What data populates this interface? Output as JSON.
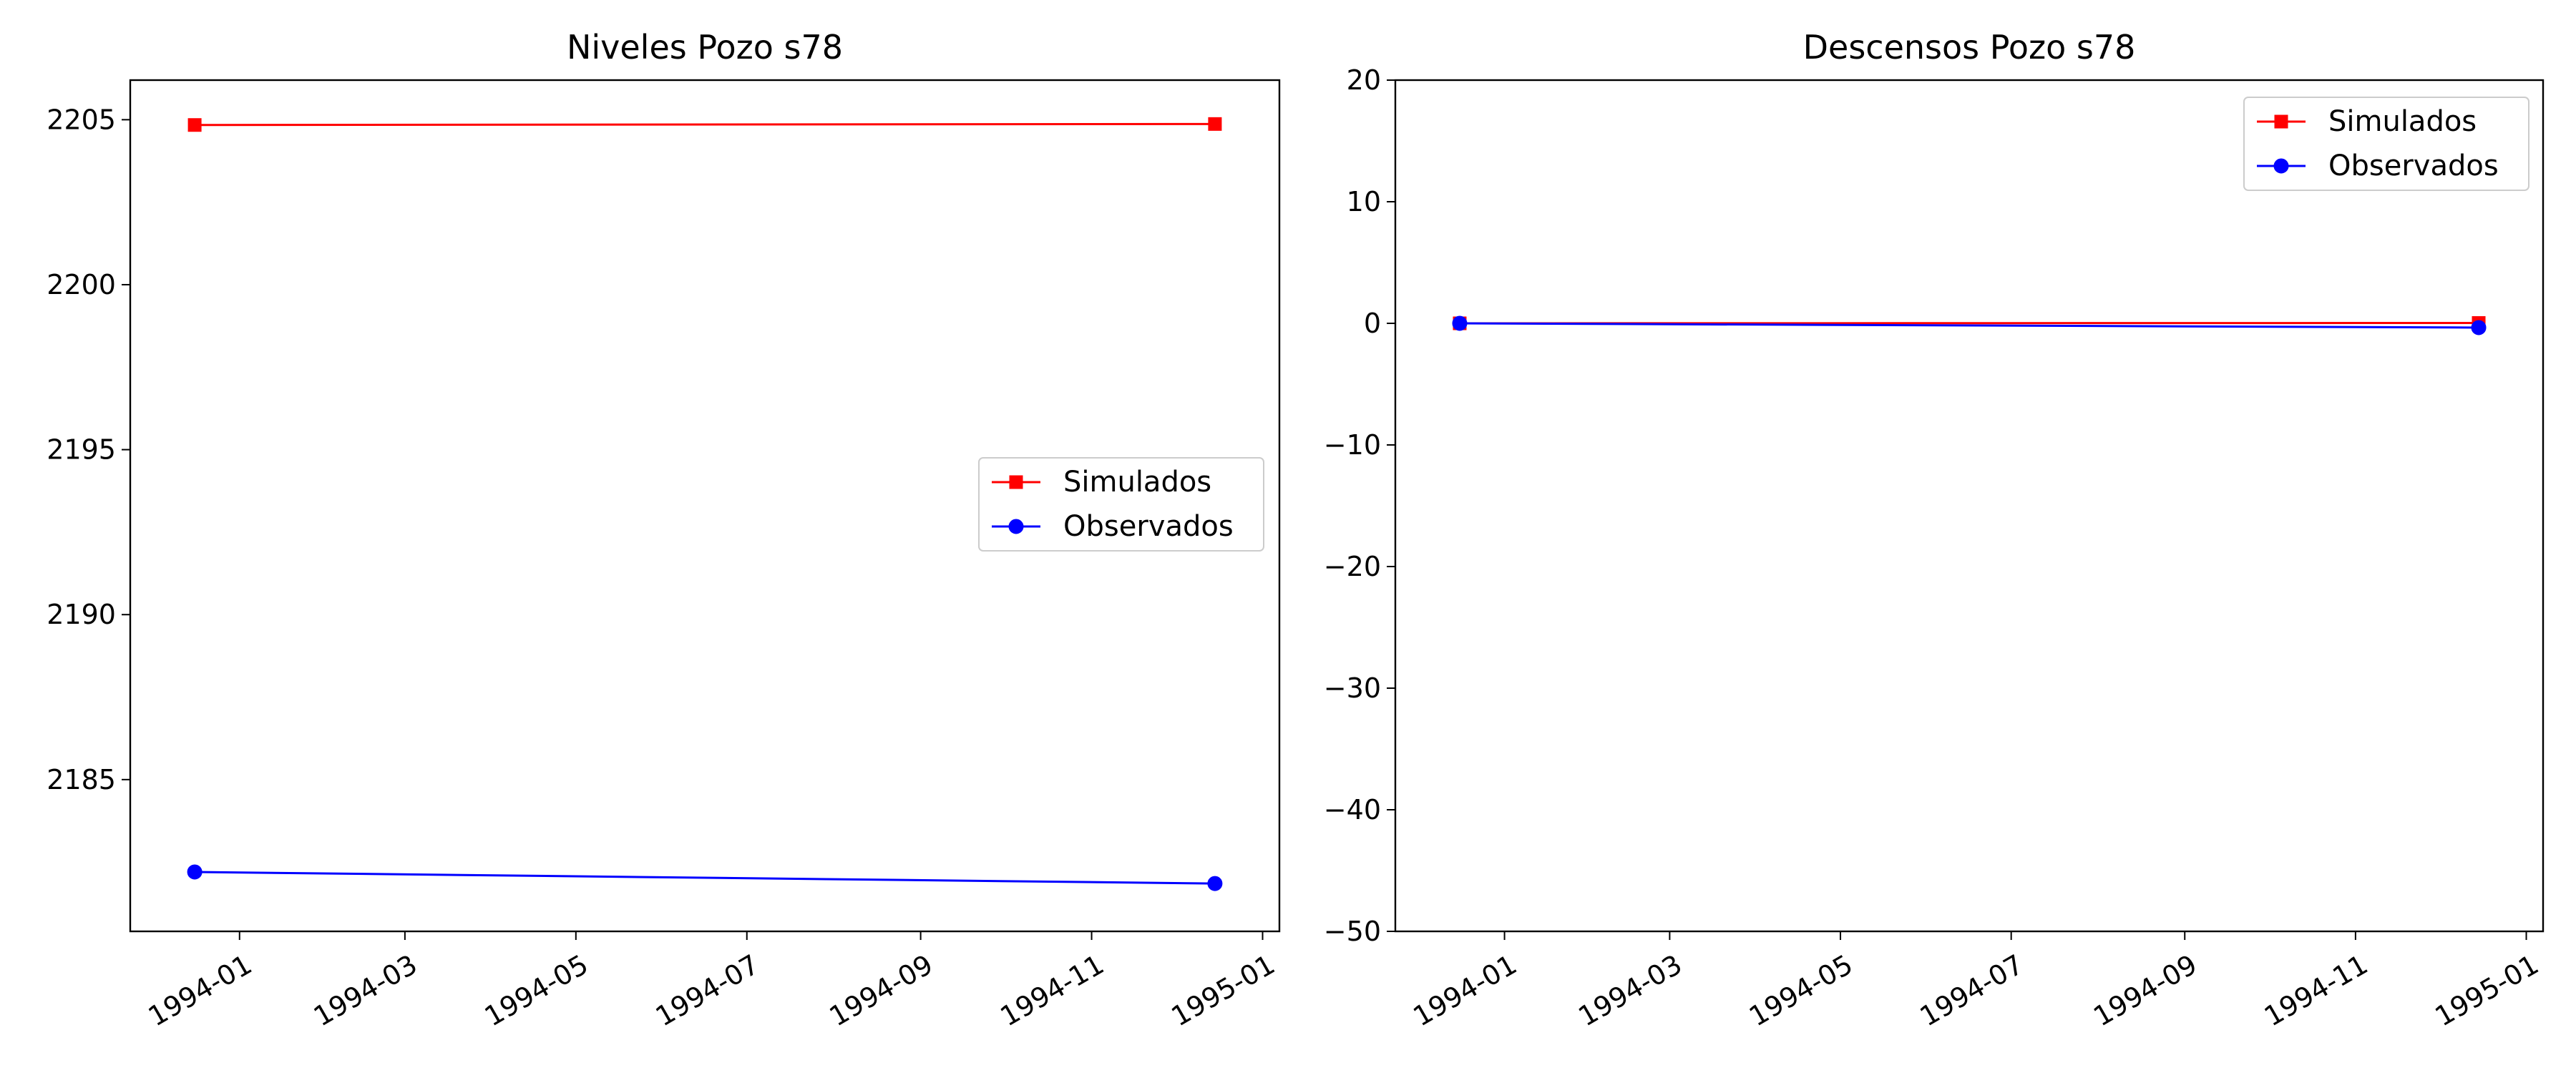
{
  "chart_data": [
    {
      "type": "line",
      "title": "Niveles Pozo s78",
      "xlabel": "",
      "ylabel": "",
      "x_ticks": [
        "1994-01",
        "1994-03",
        "1994-05",
        "1994-07",
        "1994-09",
        "1994-11",
        "1995-01"
      ],
      "y_ticks": [
        "2185",
        "2190",
        "2195",
        "2200",
        "2205"
      ],
      "xlim": [
        "1993-11-23",
        "1995-01-07"
      ],
      "ylim": [
        2180.4,
        2206.2
      ],
      "series": [
        {
          "name": "Simulados",
          "color": "#ff0000",
          "marker": "square",
          "x": [
            "1993-12-16",
            "1994-12-15"
          ],
          "y": [
            2204.84,
            2204.87
          ]
        },
        {
          "name": "Observados",
          "color": "#0000ff",
          "marker": "circle",
          "x": [
            "1993-12-16",
            "1994-12-15"
          ],
          "y": [
            2182.2,
            2181.85
          ]
        }
      ],
      "legend": {
        "position": "center-right",
        "entries": [
          "Simulados",
          "Observados"
        ]
      },
      "grid": false
    },
    {
      "type": "line",
      "title": "Descensos Pozo s78",
      "xlabel": "",
      "ylabel": "",
      "x_ticks": [
        "1994-01",
        "1994-03",
        "1994-05",
        "1994-07",
        "1994-09",
        "1994-11",
        "1995-01"
      ],
      "y_ticks": [
        "20",
        "10",
        "0",
        "−10",
        "−20",
        "−30",
        "−40",
        "−50"
      ],
      "xlim": [
        "1993-11-23",
        "1995-01-07"
      ],
      "ylim": [
        -50,
        20
      ],
      "series": [
        {
          "name": "Simulados",
          "color": "#ff0000",
          "marker": "square",
          "x": [
            "1993-12-16",
            "1994-12-15"
          ],
          "y": [
            0,
            0.03
          ]
        },
        {
          "name": "Observados",
          "color": "#0000ff",
          "marker": "circle",
          "x": [
            "1993-12-16",
            "1994-12-15"
          ],
          "y": [
            0,
            -0.35
          ]
        }
      ],
      "legend": {
        "position": "top-right",
        "entries": [
          "Simulados",
          "Observados"
        ]
      },
      "grid": false
    }
  ]
}
